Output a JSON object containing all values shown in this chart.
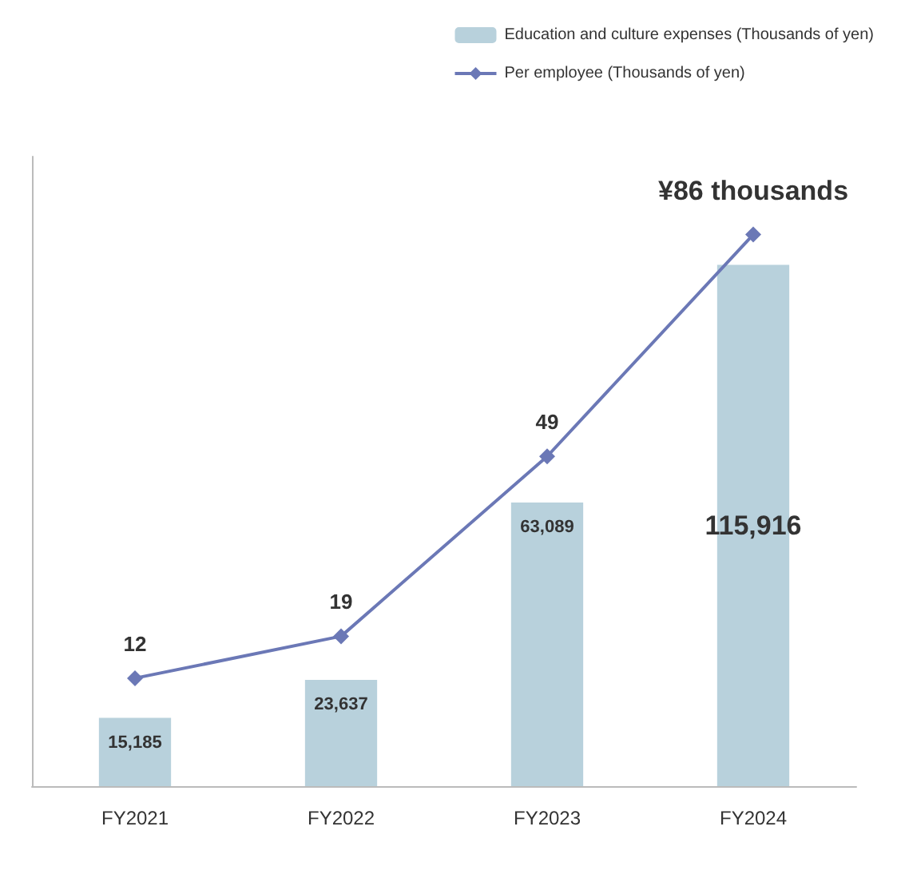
{
  "chart_data": {
    "type": "bar",
    "categories": [
      "FY2021",
      "FY2022",
      "FY2023",
      "FY2024"
    ],
    "series": [
      {
        "name": "Education and culture expenses (Thousands of yen)",
        "color": "#b8d1dc",
        "values": [
          15185,
          23637,
          63089,
          115916
        ],
        "value_labels": [
          "15,185",
          "23,637",
          "63,089",
          "115,916"
        ]
      },
      {
        "name": "Per employee (Thousands of yen)",
        "type": "line",
        "axis": "y2",
        "color": "#6b78b6",
        "values": [
          12,
          19,
          49,
          86
        ],
        "value_labels": [
          "12",
          "19",
          "49",
          "¥86 thousands"
        ]
      }
    ],
    "ylim": [
      0,
      140000
    ],
    "y2lim": [
      -6,
      99
    ],
    "tick_labels": "x",
    "grid": false,
    "legend": "top right",
    "marker": "diamond",
    "line_style": "solid"
  }
}
